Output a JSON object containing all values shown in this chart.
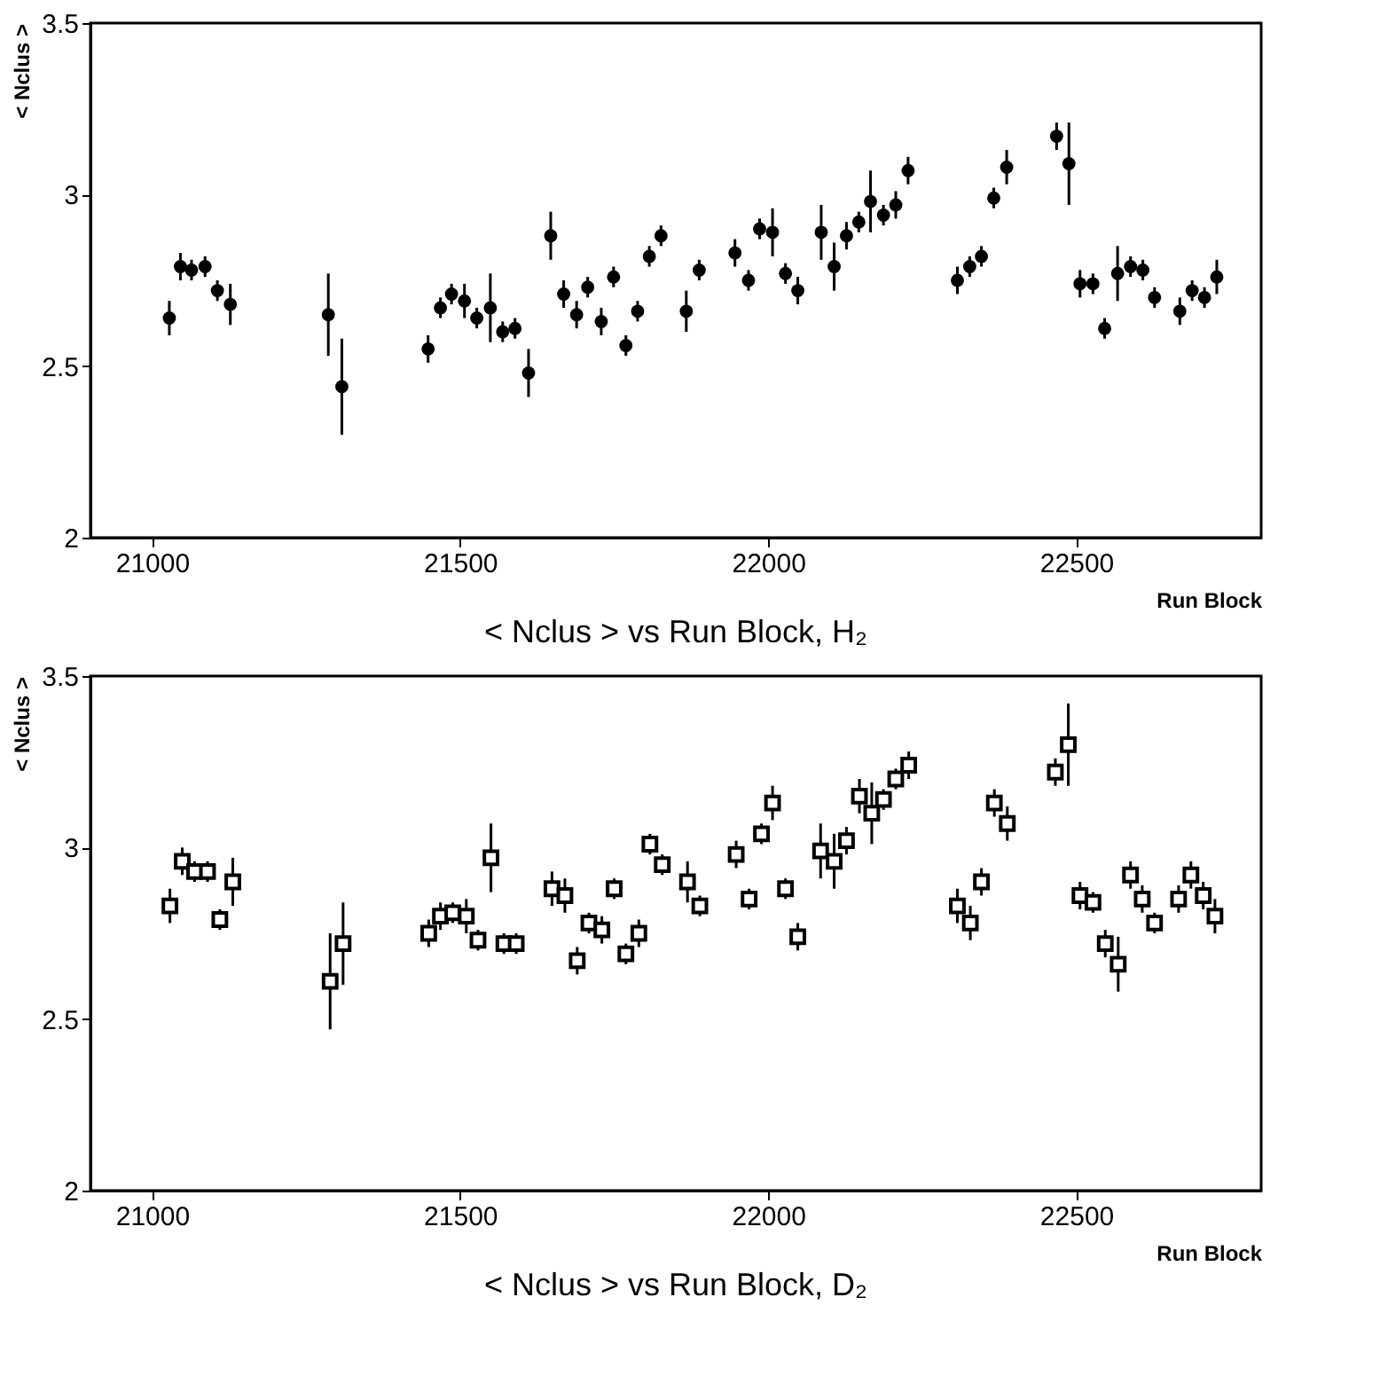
{
  "chart_data": [
    {
      "type": "scatter",
      "title": "< Nclus > vs Run Block, H₂",
      "xlabel": "Run Block",
      "ylabel": "< Nclus >",
      "marker": "circle",
      "grid": false,
      "xlim": [
        20900,
        22800
      ],
      "xticks": [
        21000,
        21500,
        22000,
        22500
      ],
      "ylim": [
        2,
        3.5
      ],
      "yticks": [
        2,
        2.5,
        3,
        3.5
      ],
      "series": [
        {
          "color": "#000000",
          "x": [
            21028,
            21046,
            21064,
            21086,
            21106,
            21127,
            21286,
            21308,
            21448,
            21468,
            21486,
            21507,
            21527,
            21549,
            21569,
            21589,
            21611,
            21647,
            21668,
            21689,
            21707,
            21729,
            21749,
            21769,
            21788,
            21807,
            21826,
            21867,
            21888,
            21946,
            21968,
            21986,
            22007,
            22028,
            22048,
            22086,
            22107,
            22127,
            22147,
            22166,
            22187,
            22207,
            22227,
            22307,
            22327,
            22346,
            22366,
            22387,
            22468,
            22488,
            22506,
            22527,
            22546,
            22567,
            22588,
            22608,
            22627,
            22668,
            22688,
            22708,
            22728
          ],
          "values": [
            2.64,
            2.79,
            2.78,
            2.79,
            2.72,
            2.68,
            2.65,
            2.44,
            2.55,
            2.67,
            2.71,
            2.69,
            2.64,
            2.67,
            2.6,
            2.61,
            2.48,
            2.88,
            2.71,
            2.65,
            2.73,
            2.63,
            2.76,
            2.56,
            2.66,
            2.82,
            2.88,
            2.66,
            2.78,
            2.83,
            2.75,
            2.9,
            2.89,
            2.77,
            2.72,
            2.89,
            2.79,
            2.88,
            2.92,
            2.98,
            2.94,
            2.97,
            3.07,
            2.75,
            2.79,
            2.82,
            2.99,
            3.08,
            3.17,
            3.09,
            2.74,
            2.74,
            2.61,
            2.77,
            2.79,
            2.78,
            2.7,
            2.66,
            2.72,
            2.7,
            2.76
          ],
          "errors": [
            0.05,
            0.04,
            0.03,
            0.03,
            0.03,
            0.06,
            0.12,
            0.14,
            0.04,
            0.03,
            0.03,
            0.05,
            0.03,
            0.1,
            0.03,
            0.03,
            0.07,
            0.07,
            0.04,
            0.04,
            0.03,
            0.04,
            0.03,
            0.03,
            0.03,
            0.03,
            0.03,
            0.06,
            0.03,
            0.04,
            0.03,
            0.03,
            0.07,
            0.03,
            0.04,
            0.08,
            0.07,
            0.04,
            0.03,
            0.09,
            0.03,
            0.04,
            0.04,
            0.04,
            0.03,
            0.03,
            0.03,
            0.05,
            0.04,
            0.12,
            0.04,
            0.03,
            0.03,
            0.08,
            0.03,
            0.03,
            0.03,
            0.04,
            0.03,
            0.03,
            0.05
          ]
        }
      ]
    },
    {
      "type": "scatter",
      "title": "< Nclus > vs Run Block, D₂",
      "xlabel": "Run Block",
      "ylabel": "< Nclus >",
      "marker": "square",
      "grid": false,
      "xlim": [
        20900,
        22800
      ],
      "xticks": [
        21000,
        21500,
        22000,
        22500
      ],
      "ylim": [
        2,
        3.5
      ],
      "yticks": [
        2,
        2.5,
        3,
        3.5
      ],
      "series": [
        {
          "color": "#000000",
          "x": [
            21029,
            21049,
            21069,
            21090,
            21110,
            21131,
            21289,
            21310,
            21449,
            21468,
            21488,
            21510,
            21529,
            21550,
            21571,
            21591,
            21649,
            21670,
            21690,
            21709,
            21730,
            21750,
            21769,
            21790,
            21808,
            21828,
            21869,
            21889,
            21948,
            21969,
            21989,
            22007,
            22028,
            22048,
            22085,
            22107,
            22127,
            22148,
            22168,
            22187,
            22207,
            22228,
            22307,
            22328,
            22346,
            22367,
            22388,
            22466,
            22487,
            22506,
            22527,
            22547,
            22568,
            22588,
            22607,
            22627,
            22666,
            22686,
            22706,
            22725
          ],
          "values": [
            2.83,
            2.96,
            2.93,
            2.93,
            2.79,
            2.9,
            2.61,
            2.72,
            2.75,
            2.8,
            2.81,
            2.8,
            2.73,
            2.97,
            2.72,
            2.72,
            2.88,
            2.86,
            2.67,
            2.78,
            2.76,
            2.88,
            2.69,
            2.75,
            3.01,
            2.95,
            2.9,
            2.83,
            2.98,
            2.85,
            3.04,
            3.13,
            2.88,
            2.74,
            2.99,
            2.96,
            3.02,
            3.15,
            3.1,
            3.14,
            3.2,
            3.24,
            2.83,
            2.78,
            2.9,
            3.13,
            3.07,
            3.22,
            3.3,
            2.86,
            2.84,
            2.72,
            2.66,
            2.92,
            2.85,
            2.78,
            2.85,
            2.92,
            2.86,
            2.8
          ],
          "errors": [
            0.05,
            0.04,
            0.03,
            0.03,
            0.03,
            0.07,
            0.14,
            0.12,
            0.04,
            0.04,
            0.03,
            0.05,
            0.03,
            0.1,
            0.03,
            0.03,
            0.05,
            0.05,
            0.04,
            0.03,
            0.04,
            0.03,
            0.03,
            0.04,
            0.03,
            0.03,
            0.06,
            0.03,
            0.04,
            0.03,
            0.03,
            0.05,
            0.03,
            0.04,
            0.08,
            0.08,
            0.04,
            0.05,
            0.09,
            0.03,
            0.03,
            0.04,
            0.05,
            0.05,
            0.04,
            0.04,
            0.05,
            0.04,
            0.12,
            0.04,
            0.03,
            0.04,
            0.08,
            0.04,
            0.04,
            0.03,
            0.04,
            0.04,
            0.04,
            0.05
          ]
        }
      ]
    }
  ]
}
